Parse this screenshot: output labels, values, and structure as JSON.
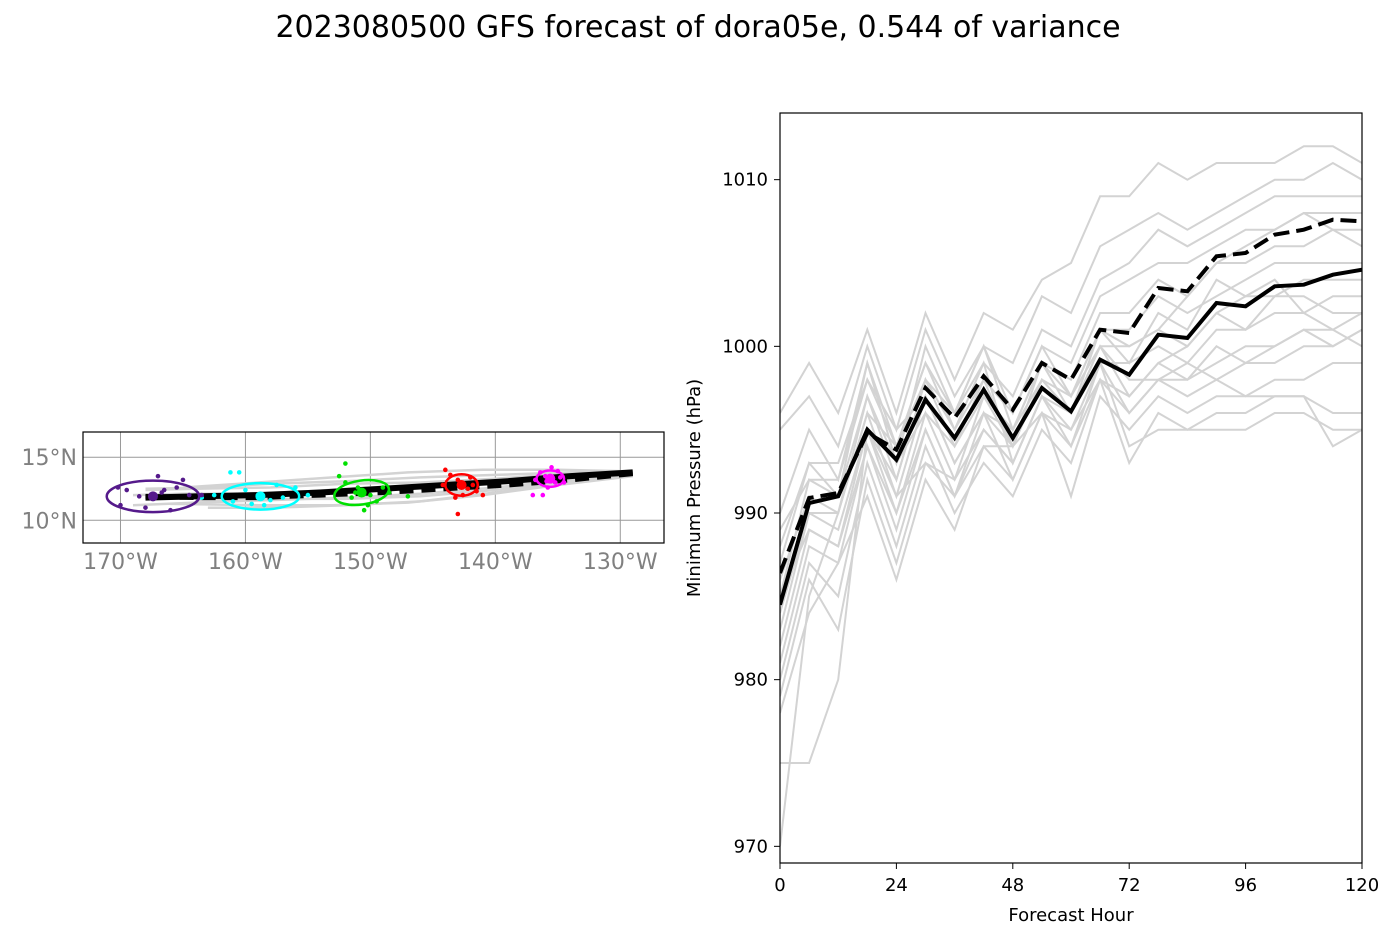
{
  "title": "2023080500 GFS forecast of dora05e, 0.544 of variance",
  "colors": {
    "ensemble": "#d3d3d3",
    "mean": "#000000",
    "day1": "#ff00ff",
    "day2": "#ff0000",
    "day3": "#00e000",
    "day4": "#00ffff",
    "day5": "#551a8b",
    "map_tick": "#808080"
  },
  "chart_data": [
    {
      "type": "line",
      "subtype": "track-map",
      "title": "",
      "xlabel": "",
      "ylabel": "",
      "xlim": [
        -173,
        -126.5
      ],
      "ylim": [
        8.2,
        17
      ],
      "x_ticks": [
        -170,
        -160,
        -150,
        -140,
        -130
      ],
      "x_tick_labels": [
        "170°W",
        "160°W",
        "150°W",
        "140°W",
        "130°W"
      ],
      "y_ticks": [
        10,
        15
      ],
      "y_tick_labels": [
        "10°N",
        "15°N"
      ],
      "grid": true,
      "ensemble_tracks": [
        {
          "lon": [
            -129,
            -134,
            -140,
            -146,
            -152,
            -158,
            -164,
            -168
          ],
          "lat": [
            13.8,
            13.5,
            13.0,
            12.6,
            12.3,
            12.0,
            11.9,
            11.8
          ]
        },
        {
          "lon": [
            -129,
            -134,
            -140,
            -146,
            -152,
            -158,
            -164,
            -169
          ],
          "lat": [
            13.7,
            13.2,
            12.6,
            12.1,
            11.8,
            11.6,
            11.4,
            11.2
          ]
        },
        {
          "lon": [
            -129,
            -134,
            -140,
            -146,
            -152,
            -158,
            -164,
            -168
          ],
          "lat": [
            13.9,
            13.7,
            13.3,
            13.0,
            12.9,
            12.6,
            12.5,
            12.4
          ]
        },
        {
          "lon": [
            -129,
            -134,
            -140,
            -146,
            -152,
            -158,
            -163
          ],
          "lat": [
            13.6,
            13.0,
            12.2,
            11.5,
            11.2,
            11.0,
            11.0
          ]
        },
        {
          "lon": [
            -129,
            -134,
            -140,
            -146,
            -152,
            -158,
            -163,
            -168
          ],
          "lat": [
            13.8,
            13.8,
            13.6,
            13.4,
            13.1,
            12.9,
            12.6,
            12.5
          ]
        },
        {
          "lon": [
            -129,
            -134,
            -140,
            -146,
            -152,
            -158,
            -164
          ],
          "lat": [
            13.6,
            13.1,
            12.4,
            11.9,
            11.7,
            11.7,
            11.6
          ]
        },
        {
          "lon": [
            -129,
            -134,
            -140,
            -145,
            -150,
            -155,
            -160,
            -165,
            -169
          ],
          "lat": [
            13.8,
            13.6,
            13.1,
            12.8,
            12.6,
            12.3,
            12.1,
            12.1,
            12.0
          ]
        },
        {
          "lon": [
            -130,
            -135,
            -141,
            -147,
            -153,
            -159,
            -165
          ],
          "lat": [
            13.9,
            14.0,
            14.0,
            13.8,
            13.4,
            13.0,
            12.6
          ]
        },
        {
          "lon": [
            -129,
            -135,
            -141,
            -147,
            -153,
            -159,
            -166
          ],
          "lat": [
            13.5,
            12.8,
            12.0,
            11.4,
            11.2,
            11.2,
            11.3
          ]
        }
      ],
      "ensemble_mean_track": {
        "lon": [
          -129,
          -134,
          -139,
          -144,
          -149,
          -154,
          -159,
          -164,
          -168
        ],
        "lat": [
          13.8,
          13.5,
          13.1,
          12.8,
          12.5,
          12.2,
          12.0,
          11.9,
          11.8
        ]
      },
      "deterministic_track": {
        "lon": [
          -129,
          -134,
          -139,
          -144,
          -149,
          -154,
          -159,
          -164,
          -168
        ],
        "lat": [
          13.7,
          13.2,
          12.8,
          12.5,
          12.2,
          12.0,
          11.8,
          11.8,
          11.9
        ]
      },
      "day_clusters": [
        {
          "day": 1,
          "center": [
            -135.6,
            13.3
          ],
          "ellipse": {
            "rx_deg": 1.1,
            "ry_deg": 0.65,
            "angle": 0
          },
          "points": [
            [
              -136,
              13.5
            ],
            [
              -135.2,
              13.0
            ],
            [
              -136.4,
              13.8
            ],
            [
              -134.8,
              13.4
            ],
            [
              -135.8,
              12.6
            ],
            [
              -136.8,
              13.2
            ],
            [
              -135.5,
              14.2
            ],
            [
              -134.5,
              13.0
            ],
            [
              -136.2,
              12.0
            ],
            [
              -135.0,
              13.9
            ],
            [
              -137.0,
              12.0
            ],
            [
              -135.9,
              13.1
            ]
          ]
        },
        {
          "day": 2,
          "center": [
            -142.7,
            12.8
          ],
          "ellipse": {
            "rx_deg": 1.3,
            "ry_deg": 0.85,
            "angle": 0
          },
          "points": [
            [
              -143,
              13.2
            ],
            [
              -142.2,
              12.5
            ],
            [
              -143.6,
              13.6
            ],
            [
              -141.8,
              12.8
            ],
            [
              -142.6,
              12.0
            ],
            [
              -144,
              14.0
            ],
            [
              -141.5,
              12.3
            ],
            [
              -143.2,
              11.8
            ],
            [
              -142.0,
              13.4
            ],
            [
              -141.0,
              12.0
            ],
            [
              -143.0,
              10.5
            ],
            [
              -144.2,
              12.8
            ],
            [
              -142.8,
              13.0
            ]
          ]
        },
        {
          "day": 3,
          "center": [
            -150.7,
            12.2
          ],
          "ellipse": {
            "rx_deg": 2.2,
            "ry_deg": 0.95,
            "angle": -8
          },
          "points": [
            [
              -151,
              12.6
            ],
            [
              -150,
              12.0
            ],
            [
              -152,
              13.0
            ],
            [
              -149.5,
              11.5
            ],
            [
              -151.5,
              11.8
            ],
            [
              -152.5,
              13.5
            ],
            [
              -148.5,
              12.2
            ],
            [
              -150.5,
              10.8
            ],
            [
              -147.0,
              11.9
            ],
            [
              -152,
              14.5
            ],
            [
              -149,
              12.6
            ],
            [
              -151.2,
              12.2
            ],
            [
              -150.2,
              11.2
            ]
          ]
        },
        {
          "day": 4,
          "center": [
            -158.8,
            11.9
          ],
          "ellipse": {
            "rx_deg": 3.1,
            "ry_deg": 1.05,
            "angle": 0
          },
          "points": [
            [
              -159,
              12.0
            ],
            [
              -158,
              11.6
            ],
            [
              -160,
              12.4
            ],
            [
              -157,
              11.8
            ],
            [
              -161,
              11.5
            ],
            [
              -156,
              12.6
            ],
            [
              -162.5,
              12.0
            ],
            [
              -160.5,
              13.8
            ],
            [
              -161.2,
              13.8
            ],
            [
              -158.5,
              11.2
            ],
            [
              -155,
              12.0
            ],
            [
              -157.5,
              12.8
            ],
            [
              -159.5,
              11.3
            ],
            [
              -163.5,
              11.8
            ]
          ]
        },
        {
          "day": 5,
          "center": [
            -167.4,
            11.9
          ],
          "ellipse": {
            "rx_deg": 3.7,
            "ry_deg": 1.25,
            "angle": 0
          },
          "points": [
            [
              -168.5,
              11.9
            ],
            [
              -166.7,
              12.2
            ],
            [
              -165.0,
              13.2
            ],
            [
              -167,
              13.5
            ],
            [
              -169.5,
              12.4
            ],
            [
              -170,
              11.2
            ],
            [
              -164.5,
              12.0
            ],
            [
              -166.0,
              10.8
            ],
            [
              -168,
              11.0
            ],
            [
              -170.2,
              12.6
            ],
            [
              -166.5,
              12.4
            ],
            [
              -163.5,
              12.0
            ],
            [
              -165.5,
              12.6
            ]
          ]
        }
      ]
    },
    {
      "type": "line",
      "title": "",
      "xlabel": "Forecast Hour",
      "ylabel": "Minimum Pressure (hPa)",
      "xlim": [
        0,
        120
      ],
      "ylim": [
        969,
        1014
      ],
      "x_ticks": [
        0,
        24,
        48,
        72,
        96,
        120
      ],
      "y_ticks": [
        970,
        980,
        990,
        1000,
        1010
      ],
      "grid": false,
      "x": [
        0,
        6,
        12,
        18,
        24,
        30,
        36,
        42,
        48,
        54,
        60,
        66,
        72,
        78,
        84,
        90,
        96,
        102,
        108,
        114,
        120
      ],
      "ensemble_members": [
        [
          996,
          999,
          996,
          1001,
          996,
          1002,
          998,
          1002,
          1001,
          1004,
          1005,
          1009,
          1009,
          1011,
          1010,
          1011,
          1011,
          1011,
          1012,
          1012,
          1011
        ],
        [
          995,
          997,
          994,
          1000,
          995,
          1001,
          997,
          1000,
          999,
          1003,
          1002,
          1006,
          1007,
          1008,
          1007,
          1008,
          1009,
          1010,
          1010,
          1011,
          1010
        ],
        [
          990,
          995,
          992,
          999,
          993,
          1000,
          996,
          999,
          997,
          1001,
          1000,
          1004,
          1005,
          1007,
          1006,
          1007,
          1008,
          1009,
          1009,
          1009,
          1009
        ],
        [
          988,
          993,
          993,
          998,
          994,
          999,
          995,
          998,
          996,
          1000,
          999,
          1003,
          1004,
          1005,
          1005,
          1006,
          1007,
          1007,
          1008,
          1008,
          1008
        ],
        [
          985,
          992,
          991,
          997,
          992,
          998,
          994,
          997,
          995,
          999,
          998,
          1002,
          1002,
          1004,
          1003,
          1005,
          1005,
          1006,
          1006,
          1007,
          1006
        ],
        [
          983,
          990,
          990,
          996,
          991,
          997,
          993,
          996,
          994,
          998,
          997,
          1001,
          1001,
          1003,
          1002,
          1003,
          1004,
          1005,
          1005,
          1005,
          1005
        ],
        [
          982,
          989,
          988,
          995,
          990,
          996,
          992,
          995,
          993,
          997,
          996,
          1000,
          1000,
          1001,
          1000,
          1002,
          1003,
          1003,
          1004,
          1004,
          1004
        ],
        [
          981,
          988,
          987,
          994,
          989,
          995,
          991,
          994,
          992,
          996,
          995,
          999,
          999,
          1000,
          999,
          1001,
          1001,
          1002,
          1002,
          1003,
          1003
        ],
        [
          980,
          987,
          985,
          993,
          988,
          994,
          990,
          993,
          991,
          995,
          993,
          998,
          997,
          999,
          998,
          999,
          1000,
          1000,
          1001,
          1001,
          1002
        ],
        [
          979,
          986,
          983,
          992,
          987,
          993,
          991,
          995,
          993,
          997,
          994,
          999,
          996,
          998,
          997,
          998,
          999,
          999,
          1000,
          1000,
          1001
        ],
        [
          978,
          984,
          987,
          991,
          986,
          992,
          989,
          994,
          994,
          996,
          991,
          997,
          995,
          997,
          996,
          997,
          997,
          998,
          998,
          999,
          999
        ],
        [
          975,
          975,
          980,
          995,
          992,
          998,
          995,
          999,
          993,
          997,
          995,
          998,
          993,
          996,
          995,
          996,
          996,
          997,
          997,
          996,
          996
        ],
        [
          970,
          985,
          990,
          996,
          994,
          999,
          996,
          1000,
          995,
          998,
          996,
          999,
          994,
          995,
          995,
          995,
          995,
          996,
          996,
          995,
          995
        ],
        [
          986,
          991,
          990,
          997,
          993,
          996,
          994,
          998,
          994,
          999,
          997,
          1000,
          998,
          998,
          999,
          998,
          997,
          997,
          997,
          994,
          995
        ],
        [
          987,
          993,
          991,
          999,
          994,
          998,
          996,
          1000,
          996,
          1000,
          997,
          1001,
          999,
          1002,
          1001,
          1004,
          1003,
          1004,
          1002,
          1001,
          1000
        ],
        [
          984,
          990,
          989,
          995,
          991,
          993,
          992,
          997,
          994,
          998,
          996,
          1000,
          997,
          999,
          1000,
          1002,
          1001,
          1003,
          1003,
          1002,
          1002
        ],
        [
          989,
          992,
          992,
          998,
          995,
          997,
          993,
          996,
          995,
          999,
          996,
          1001,
          1000,
          1001,
          1003,
          1005,
          1006,
          1007,
          1008,
          1007,
          1007
        ],
        [
          985,
          989,
          988,
          994,
          990,
          995,
          991,
          996,
          992,
          996,
          994,
          998,
          996,
          998,
          998,
          1000,
          999,
          1000,
          1001,
          1000,
          1001
        ]
      ],
      "series": [
        {
          "values": [
            984.5,
            990.6,
            991.0,
            995.0,
            993.2,
            996.8,
            994.5,
            997.4,
            994.5,
            997.5,
            996.1,
            999.2,
            998.3,
            1000.7,
            1000.5,
            1002.6,
            1002.4,
            1003.6,
            1003.7,
            1004.3,
            1004.6
          ],
          "style": "solid"
        },
        {
          "values": [
            986.4,
            990.9,
            991.2,
            994.8,
            993.8,
            997.5,
            995.7,
            998.2,
            996.2,
            999.0,
            998.0,
            1001.0,
            1000.8,
            1003.5,
            1003.3,
            1005.4,
            1005.6,
            1006.7,
            1007.0,
            1007.6,
            1007.5
          ],
          "style": "dashed"
        }
      ]
    }
  ]
}
